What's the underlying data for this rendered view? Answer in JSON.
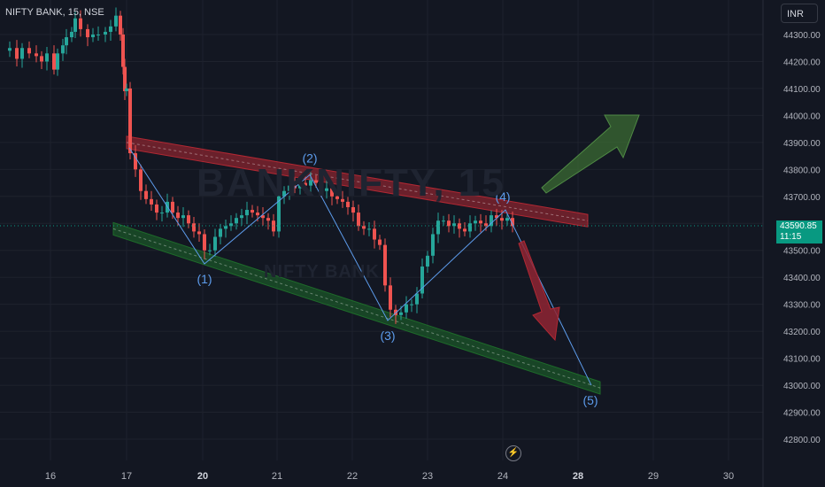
{
  "header": {
    "symbol": "NIFTY BANK, 15, NSE",
    "currency": "INR"
  },
  "watermark": {
    "main": "BANKNIFTY, 15",
    "sub": "NIFTY BANK"
  },
  "price_tag": {
    "price": "43590.85",
    "countdown": "11:15"
  },
  "colors": {
    "background": "#131722",
    "grid": "#1e222d",
    "bull": "#26a69a",
    "bear": "#ef5350",
    "resistance": "#b22833",
    "support": "#1e6b2a",
    "wave": "#5d9cec",
    "price_line": "#089981"
  },
  "icons": {
    "bolt": "lightning-icon"
  },
  "chart_data": {
    "type": "candlestick",
    "y_axis": {
      "ticks": [
        "44300.00",
        "44200.00",
        "44100.00",
        "44000.00",
        "43900.00",
        "43800.00",
        "43700.00",
        "43600.00",
        "43500.00",
        "43400.00",
        "43300.00",
        "43200.00",
        "43100.00",
        "43000.00",
        "42900.00",
        "42800.00"
      ],
      "range": [
        42740,
        44370
      ]
    },
    "x_axis": {
      "ticks": [
        {
          "label": "16",
          "bold": false
        },
        {
          "label": "17",
          "bold": false
        },
        {
          "label": "20",
          "bold": true
        },
        {
          "label": "21",
          "bold": false
        },
        {
          "label": "22",
          "bold": false
        },
        {
          "label": "23",
          "bold": false
        },
        {
          "label": "24",
          "bold": false
        },
        {
          "label": "28",
          "bold": true
        },
        {
          "label": "29",
          "bold": false
        },
        {
          "label": "30",
          "bold": false
        }
      ]
    },
    "last_price": 43590.85,
    "price_path": [
      [
        0,
        44240
      ],
      [
        8,
        44250
      ],
      [
        16,
        44210
      ],
      [
        22,
        44250
      ],
      [
        30,
        44230
      ],
      [
        38,
        44220
      ],
      [
        44,
        44200
      ],
      [
        50,
        44230
      ],
      [
        58,
        44170
      ],
      [
        62,
        44230
      ],
      [
        68,
        44260
      ],
      [
        72,
        44290
      ],
      [
        78,
        44310
      ],
      [
        82,
        44360
      ],
      [
        88,
        44320
      ],
      [
        96,
        44290
      ],
      [
        102,
        44300
      ],
      [
        108,
        44300
      ],
      [
        116,
        44310
      ],
      [
        122,
        44330
      ],
      [
        128,
        44370
      ],
      [
        133,
        44300
      ],
      [
        136,
        44180
      ],
      [
        138,
        44090
      ],
      [
        140,
        44100
      ],
      [
        144,
        43860
      ],
      [
        150,
        43800
      ],
      [
        156,
        43720
      ],
      [
        162,
        43690
      ],
      [
        168,
        43670
      ],
      [
        174,
        43640
      ],
      [
        180,
        43640
      ],
      [
        186,
        43680
      ],
      [
        192,
        43640
      ],
      [
        198,
        43620
      ],
      [
        204,
        43630
      ],
      [
        210,
        43600
      ],
      [
        216,
        43570
      ],
      [
        222,
        43560
      ],
      [
        228,
        43500
      ],
      [
        234,
        43500
      ],
      [
        240,
        43550
      ],
      [
        246,
        43580
      ],
      [
        252,
        43590
      ],
      [
        258,
        43600
      ],
      [
        264,
        43620
      ],
      [
        270,
        43630
      ],
      [
        276,
        43650
      ],
      [
        282,
        43640
      ],
      [
        288,
        43630
      ],
      [
        294,
        43620
      ],
      [
        300,
        43610
      ],
      [
        306,
        43570
      ],
      [
        312,
        43700
      ],
      [
        318,
        43720
      ],
      [
        324,
        43740
      ],
      [
        330,
        43730
      ],
      [
        336,
        43750
      ],
      [
        342,
        43740
      ],
      [
        348,
        43760
      ],
      [
        354,
        43750
      ],
      [
        360,
        43720
      ],
      [
        366,
        43730
      ],
      [
        372,
        43700
      ],
      [
        378,
        43690
      ],
      [
        384,
        43680
      ],
      [
        390,
        43660
      ],
      [
        396,
        43640
      ],
      [
        402,
        43590
      ],
      [
        408,
        43580
      ],
      [
        414,
        43580
      ],
      [
        420,
        43540
      ],
      [
        426,
        43520
      ],
      [
        432,
        43370
      ],
      [
        438,
        43280
      ],
      [
        444,
        43260
      ],
      [
        450,
        43270
      ],
      [
        456,
        43300
      ],
      [
        462,
        43300
      ],
      [
        468,
        43340
      ],
      [
        474,
        43440
      ],
      [
        480,
        43480
      ],
      [
        486,
        43560
      ],
      [
        492,
        43610
      ],
      [
        498,
        43610
      ],
      [
        504,
        43590
      ],
      [
        510,
        43600
      ],
      [
        516,
        43580
      ],
      [
        522,
        43570
      ],
      [
        528,
        43600
      ],
      [
        534,
        43610
      ],
      [
        540,
        43600
      ],
      [
        546,
        43590
      ],
      [
        552,
        43630
      ],
      [
        558,
        43620
      ],
      [
        564,
        43610
      ],
      [
        570,
        43620
      ],
      [
        576,
        43590
      ]
    ],
    "channel": {
      "resistance": {
        "start": 43900,
        "end": 43610
      },
      "support": {
        "start": 43580,
        "end": 42990
      }
    },
    "waves": [
      {
        "label": "(1)",
        "price": 43450
      },
      {
        "label": "(2)",
        "price": 43780
      },
      {
        "label": "(3)",
        "price": 43240
      },
      {
        "label": "(4)",
        "price": 43650
      },
      {
        "label": "(5)",
        "price": 43000
      }
    ],
    "annotations": [
      "bullish-arrow",
      "bearish-arrow"
    ]
  }
}
